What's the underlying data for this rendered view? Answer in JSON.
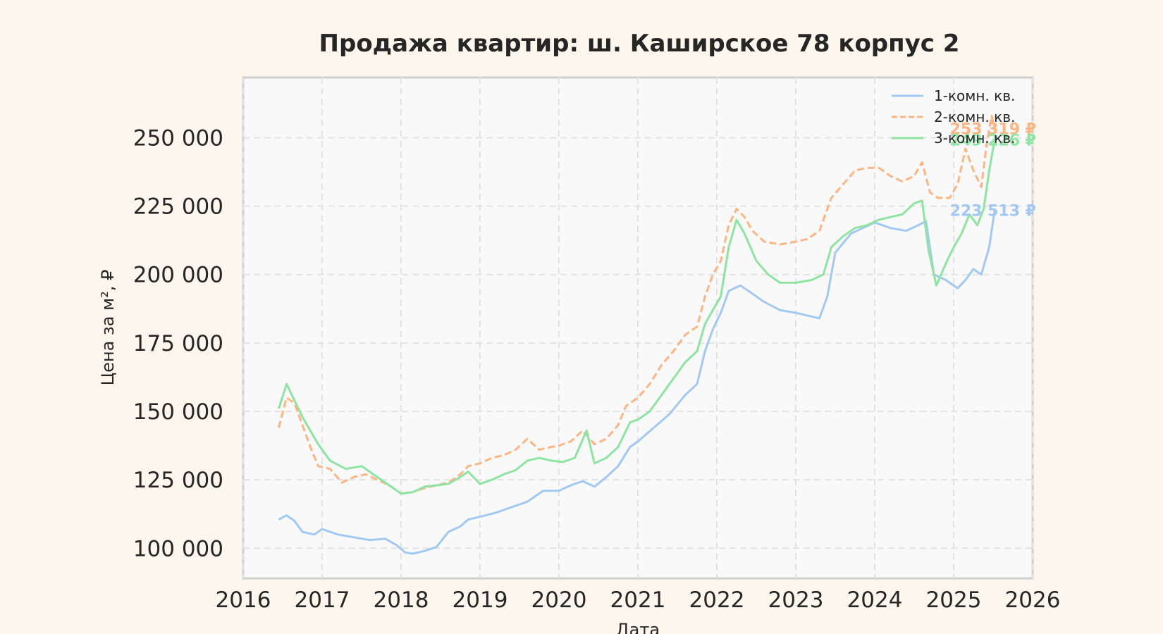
{
  "chart_data": {
    "type": "line",
    "title": "Продажа квартир: ш. Каширское 78 корпус 2",
    "xlabel": "Дата",
    "ylabel": "Цена за м², ₽",
    "x_ticks": [
      "2016",
      "2017",
      "2018",
      "2019",
      "2020",
      "2021",
      "2022",
      "2023",
      "2024",
      "2025",
      "2026"
    ],
    "y_ticks": [
      "100 000",
      "125 000",
      "150 000",
      "175 000",
      "200 000",
      "225 000",
      "250 000"
    ],
    "xlim": [
      2016.0,
      2026.0
    ],
    "ylim": [
      89000,
      272000
    ],
    "grid": true,
    "legend_position": "top-right",
    "series": [
      {
        "name": "1-комн. кв.",
        "color": "#a1c9f4",
        "style": "solid",
        "end_label": "223 513 ₽",
        "points": [
          [
            2016.45,
            110500
          ],
          [
            2016.55,
            112000
          ],
          [
            2016.65,
            110000
          ],
          [
            2016.75,
            106000
          ],
          [
            2016.9,
            105000
          ],
          [
            2017.0,
            107000
          ],
          [
            2017.2,
            105000
          ],
          [
            2017.4,
            104000
          ],
          [
            2017.6,
            103000
          ],
          [
            2017.8,
            103500
          ],
          [
            2017.95,
            101000
          ],
          [
            2018.05,
            98500
          ],
          [
            2018.15,
            98000
          ],
          [
            2018.3,
            99000
          ],
          [
            2018.45,
            100500
          ],
          [
            2018.6,
            106000
          ],
          [
            2018.75,
            108000
          ],
          [
            2018.85,
            110500
          ],
          [
            2019.0,
            111500
          ],
          [
            2019.2,
            113000
          ],
          [
            2019.4,
            115000
          ],
          [
            2019.6,
            117000
          ],
          [
            2019.8,
            121000
          ],
          [
            2020.0,
            121000
          ],
          [
            2020.15,
            123000
          ],
          [
            2020.3,
            124500
          ],
          [
            2020.45,
            122500
          ],
          [
            2020.6,
            126000
          ],
          [
            2020.75,
            130000
          ],
          [
            2020.9,
            137000
          ],
          [
            2021.0,
            139000
          ],
          [
            2021.2,
            144000
          ],
          [
            2021.4,
            149000
          ],
          [
            2021.6,
            156000
          ],
          [
            2021.75,
            160000
          ],
          [
            2021.85,
            172000
          ],
          [
            2021.95,
            180000
          ],
          [
            2022.05,
            186000
          ],
          [
            2022.15,
            194000
          ],
          [
            2022.3,
            196000
          ],
          [
            2022.45,
            193000
          ],
          [
            2022.6,
            190000
          ],
          [
            2022.8,
            187000
          ],
          [
            2023.0,
            186000
          ],
          [
            2023.15,
            185000
          ],
          [
            2023.3,
            184000
          ],
          [
            2023.4,
            192000
          ],
          [
            2023.5,
            208000
          ],
          [
            2023.7,
            215000
          ],
          [
            2023.85,
            217000
          ],
          [
            2024.0,
            219000
          ],
          [
            2024.2,
            217000
          ],
          [
            2024.4,
            216000
          ],
          [
            2024.55,
            218000
          ],
          [
            2024.65,
            219500
          ],
          [
            2024.75,
            200000
          ],
          [
            2024.9,
            198000
          ],
          [
            2025.05,
            195000
          ],
          [
            2025.15,
            198000
          ],
          [
            2025.25,
            202000
          ],
          [
            2025.35,
            200000
          ],
          [
            2025.45,
            210000
          ],
          [
            2025.52,
            223513
          ]
        ]
      },
      {
        "name": "2-комн. кв.",
        "color": "#ffb482",
        "style": "dashed",
        "end_label": "253 319 ₽",
        "points": [
          [
            2016.45,
            144000
          ],
          [
            2016.55,
            155000
          ],
          [
            2016.65,
            153000
          ],
          [
            2016.75,
            145000
          ],
          [
            2016.85,
            137000
          ],
          [
            2016.95,
            130000
          ],
          [
            2017.1,
            129000
          ],
          [
            2017.25,
            124000
          ],
          [
            2017.4,
            126000
          ],
          [
            2017.55,
            127000
          ],
          [
            2017.7,
            125000
          ],
          [
            2017.85,
            123000
          ],
          [
            2018.0,
            120000
          ],
          [
            2018.15,
            120500
          ],
          [
            2018.3,
            122000
          ],
          [
            2018.45,
            123000
          ],
          [
            2018.6,
            124000
          ],
          [
            2018.75,
            127000
          ],
          [
            2018.85,
            130000
          ],
          [
            2019.0,
            131000
          ],
          [
            2019.15,
            133000
          ],
          [
            2019.3,
            134000
          ],
          [
            2019.45,
            136000
          ],
          [
            2019.6,
            140000
          ],
          [
            2019.75,
            136000
          ],
          [
            2019.9,
            137000
          ],
          [
            2020.0,
            137500
          ],
          [
            2020.15,
            139000
          ],
          [
            2020.3,
            143000
          ],
          [
            2020.45,
            138000
          ],
          [
            2020.6,
            140000
          ],
          [
            2020.75,
            145000
          ],
          [
            2020.85,
            152000
          ],
          [
            2021.0,
            155000
          ],
          [
            2021.15,
            160000
          ],
          [
            2021.3,
            167000
          ],
          [
            2021.45,
            172000
          ],
          [
            2021.6,
            178000
          ],
          [
            2021.75,
            181000
          ],
          [
            2021.85,
            192000
          ],
          [
            2021.95,
            200000
          ],
          [
            2022.05,
            205000
          ],
          [
            2022.15,
            218000
          ],
          [
            2022.25,
            224000
          ],
          [
            2022.35,
            221000
          ],
          [
            2022.45,
            216000
          ],
          [
            2022.6,
            212000
          ],
          [
            2022.8,
            211000
          ],
          [
            2023.0,
            212000
          ],
          [
            2023.15,
            213000
          ],
          [
            2023.3,
            216000
          ],
          [
            2023.45,
            228000
          ],
          [
            2023.6,
            233000
          ],
          [
            2023.75,
            238000
          ],
          [
            2023.9,
            239000
          ],
          [
            2024.05,
            239000
          ],
          [
            2024.2,
            236000
          ],
          [
            2024.35,
            234000
          ],
          [
            2024.5,
            236000
          ],
          [
            2024.6,
            241000
          ],
          [
            2024.7,
            230000
          ],
          [
            2024.8,
            228000
          ],
          [
            2024.95,
            228000
          ],
          [
            2025.05,
            233000
          ],
          [
            2025.15,
            246000
          ],
          [
            2025.25,
            238000
          ],
          [
            2025.35,
            232000
          ],
          [
            2025.42,
            248000
          ],
          [
            2025.48,
            258000
          ],
          [
            2025.52,
            253319
          ]
        ]
      },
      {
        "name": "3-комн. кв.",
        "color": "#8de5a1",
        "style": "solid",
        "end_label": "249 226 ₽",
        "points": [
          [
            2016.45,
            151000
          ],
          [
            2016.55,
            160000
          ],
          [
            2016.65,
            154000
          ],
          [
            2016.75,
            148000
          ],
          [
            2016.85,
            143000
          ],
          [
            2016.95,
            138000
          ],
          [
            2017.1,
            132000
          ],
          [
            2017.3,
            129000
          ],
          [
            2017.5,
            130000
          ],
          [
            2017.65,
            127000
          ],
          [
            2017.8,
            124000
          ],
          [
            2018.0,
            120000
          ],
          [
            2018.15,
            120500
          ],
          [
            2018.3,
            122500
          ],
          [
            2018.45,
            123000
          ],
          [
            2018.6,
            123500
          ],
          [
            2018.75,
            126000
          ],
          [
            2018.85,
            128000
          ],
          [
            2019.0,
            123500
          ],
          [
            2019.15,
            125000
          ],
          [
            2019.3,
            127000
          ],
          [
            2019.45,
            128500
          ],
          [
            2019.6,
            132000
          ],
          [
            2019.75,
            133000
          ],
          [
            2019.9,
            132000
          ],
          [
            2020.05,
            131500
          ],
          [
            2020.2,
            133000
          ],
          [
            2020.35,
            143000
          ],
          [
            2020.45,
            131000
          ],
          [
            2020.6,
            133000
          ],
          [
            2020.75,
            137000
          ],
          [
            2020.9,
            146000
          ],
          [
            2021.0,
            147000
          ],
          [
            2021.15,
            150000
          ],
          [
            2021.3,
            156000
          ],
          [
            2021.45,
            162000
          ],
          [
            2021.6,
            168000
          ],
          [
            2021.75,
            172000
          ],
          [
            2021.85,
            182000
          ],
          [
            2021.95,
            187000
          ],
          [
            2022.05,
            192000
          ],
          [
            2022.15,
            210000
          ],
          [
            2022.25,
            220000
          ],
          [
            2022.35,
            215000
          ],
          [
            2022.5,
            205000
          ],
          [
            2022.65,
            200000
          ],
          [
            2022.8,
            197000
          ],
          [
            2023.0,
            197000
          ],
          [
            2023.2,
            198000
          ],
          [
            2023.35,
            200000
          ],
          [
            2023.45,
            210000
          ],
          [
            2023.6,
            214000
          ],
          [
            2023.75,
            217000
          ],
          [
            2023.9,
            218000
          ],
          [
            2024.05,
            220000
          ],
          [
            2024.2,
            221000
          ],
          [
            2024.35,
            222000
          ],
          [
            2024.5,
            226000
          ],
          [
            2024.6,
            227000
          ],
          [
            2024.68,
            209000
          ],
          [
            2024.78,
            196000
          ],
          [
            2024.9,
            204000
          ],
          [
            2025.0,
            210000
          ],
          [
            2025.1,
            215000
          ],
          [
            2025.2,
            222000
          ],
          [
            2025.3,
            218000
          ],
          [
            2025.38,
            224000
          ],
          [
            2025.45,
            238000
          ],
          [
            2025.52,
            249226
          ]
        ]
      }
    ]
  }
}
